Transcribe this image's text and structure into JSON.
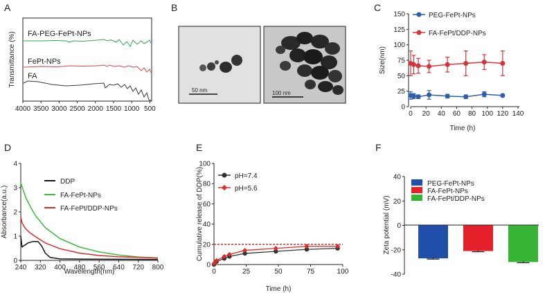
{
  "chart_data": [
    {
      "panel": "A",
      "type": "line",
      "xlabel": "",
      "ylabel": "Transmittance (%)",
      "x_ticks": [
        "4000",
        "3500",
        "3000",
        "2500",
        "2000",
        "1500",
        "1000",
        "500"
      ],
      "xlim": [
        4000,
        450
      ],
      "series": [
        {
          "name": "FA-PEG-FePt-NPs",
          "color": "#3aa05a"
        },
        {
          "name": "FePt-NPs",
          "color": "#d8434a"
        },
        {
          "name": "FA",
          "color": "#3a3a3a"
        }
      ]
    },
    {
      "panel": "B",
      "type": "image",
      "scale_bars": [
        "50 nm",
        "100 nm"
      ]
    },
    {
      "panel": "C",
      "type": "line",
      "xlabel": "Time (h)",
      "ylabel": "Size(nm)",
      "xlim": [
        0,
        140
      ],
      "ylim": [
        0,
        150
      ],
      "x_ticks": [
        0,
        20,
        40,
        60,
        80,
        100,
        120,
        140
      ],
      "y_ticks": [
        0,
        25,
        50,
        75,
        100,
        125,
        150
      ],
      "series": [
        {
          "name": "PEG-FePt-NPs",
          "color": "#2f5ea8",
          "x": [
            0,
            4,
            10,
            24,
            48,
            72,
            96,
            120
          ],
          "y": [
            18,
            17,
            16,
            19,
            17,
            16,
            20,
            18
          ],
          "err": [
            6,
            4,
            3,
            7,
            3,
            3,
            4,
            2
          ]
        },
        {
          "name": "FA-FePt/DDP-NPs",
          "color": "#d6333b",
          "x": [
            0,
            4,
            10,
            24,
            48,
            72,
            96,
            120
          ],
          "y": [
            70,
            68,
            66,
            65,
            68,
            70,
            72,
            70
          ],
          "err": [
            20,
            15,
            12,
            10,
            12,
            20,
            12,
            20
          ]
        }
      ]
    },
    {
      "panel": "D",
      "type": "line",
      "xlabel": "Wavelength(nm)",
      "ylabel": "Absorbance(a.u.)",
      "xlim": [
        240,
        800
      ],
      "ylim": [
        0,
        4
      ],
      "x_ticks": [
        240,
        320,
        400,
        480,
        560,
        640,
        720,
        800
      ],
      "y_ticks": [
        0,
        1,
        2,
        3,
        4
      ],
      "series": [
        {
          "name": "DDP",
          "color": "#111111",
          "x": [
            240,
            245,
            255,
            270,
            290,
            310,
            325,
            340,
            360,
            400,
            500,
            800
          ],
          "y": [
            1.0,
            0.55,
            0.62,
            0.72,
            0.78,
            0.78,
            0.6,
            0.3,
            0.12,
            0.06,
            0.05,
            0.04
          ]
        },
        {
          "name": "FA-FePt-NPs",
          "color": "#3dbb3d",
          "x": [
            240,
            245,
            260,
            280,
            300,
            340,
            400,
            480,
            560,
            640,
            720,
            800
          ],
          "y": [
            3.2,
            3.05,
            2.6,
            2.2,
            1.85,
            1.35,
            0.9,
            0.55,
            0.35,
            0.22,
            0.14,
            0.1
          ]
        },
        {
          "name": "FA-FePt/DDP-NPs",
          "color": "#e02a2a",
          "x": [
            240,
            245,
            260,
            280,
            300,
            340,
            400,
            480,
            560,
            640,
            720,
            800
          ],
          "y": [
            1.8,
            1.55,
            1.3,
            1.12,
            0.98,
            0.72,
            0.48,
            0.3,
            0.2,
            0.15,
            0.12,
            0.1
          ]
        }
      ]
    },
    {
      "panel": "E",
      "type": "line",
      "xlabel": "Time (h)",
      "ylabel": "Cumulative release of DDP(%)",
      "xlim": [
        0,
        100
      ],
      "ylim": [
        0,
        100
      ],
      "x_ticks": [
        0,
        25,
        50,
        75,
        100
      ],
      "y_ticks": [
        0,
        20,
        40,
        60,
        80,
        100
      ],
      "reference_line": 20,
      "series": [
        {
          "name": "pH=7.4",
          "color": "#333333",
          "x": [
            0,
            2,
            8,
            12,
            24,
            48,
            72,
            96
          ],
          "y": [
            0,
            3,
            6,
            8,
            11,
            13,
            15,
            16
          ],
          "err": [
            0.5,
            1,
            1.5,
            1.5,
            1.5,
            1.5,
            1.5,
            1.5
          ]
        },
        {
          "name": "pH=5.6",
          "color": "#e02a2a",
          "x": [
            0,
            2,
            8,
            12,
            24,
            48,
            72,
            96
          ],
          "y": [
            1,
            4,
            8,
            10,
            14,
            16,
            18,
            18
          ],
          "err": [
            0.5,
            1,
            1.5,
            1.5,
            1.5,
            1.5,
            1.5,
            1.5
          ]
        }
      ]
    },
    {
      "panel": "F",
      "type": "bar",
      "xlabel": "",
      "ylabel": "Zeta potential (mV)",
      "ylim": [
        -40,
        40
      ],
      "y_ticks": [
        -40,
        -20,
        0,
        20,
        40
      ],
      "categories": [
        "PEG-FePt-NPs",
        "FA-FePt-NPs",
        "FA-FePt/DDP-NPs"
      ],
      "values": [
        -27,
        -21,
        -30
      ],
      "err": [
        0.6,
        0.6,
        0.6
      ],
      "colors": [
        "#1f4fa8",
        "#e4202a",
        "#37b436"
      ]
    }
  ]
}
